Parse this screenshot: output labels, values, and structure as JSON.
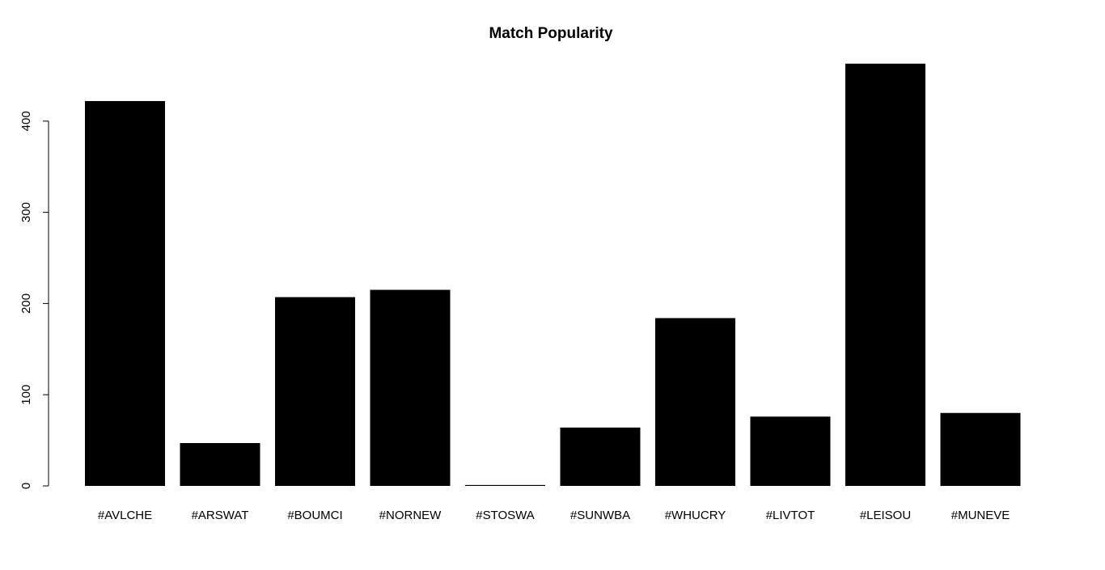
{
  "chart_data": {
    "type": "bar",
    "title": "Match Popularity",
    "xlabel": "",
    "ylabel": "",
    "categories": [
      "#AVLCHE",
      "#ARSWAT",
      "#BOUMCI",
      "#NORNEW",
      "#STOSWA",
      "#SUNWBA",
      "#WHUCRY",
      "#LIVTOT",
      "#LEISOU",
      "#MUNEVE"
    ],
    "values": [
      422,
      47,
      207,
      215,
      1,
      64,
      184,
      76,
      463,
      80
    ],
    "yticks": [
      0,
      100,
      200,
      300,
      400
    ],
    "ylim": [
      0,
      463
    ],
    "bar_color": "#000000",
    "grid": false,
    "legend": "none"
  }
}
